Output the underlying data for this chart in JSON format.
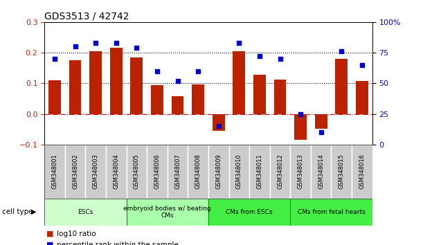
{
  "title": "GDS3513 / 42742",
  "samples": [
    "GSM348001",
    "GSM348002",
    "GSM348003",
    "GSM348004",
    "GSM348005",
    "GSM348006",
    "GSM348007",
    "GSM348008",
    "GSM348009",
    "GSM348010",
    "GSM348011",
    "GSM348012",
    "GSM348013",
    "GSM348014",
    "GSM348015",
    "GSM348016"
  ],
  "log10_ratio": [
    0.11,
    0.175,
    0.205,
    0.215,
    0.185,
    0.093,
    0.058,
    0.097,
    -0.055,
    0.205,
    0.127,
    0.113,
    -0.085,
    -0.048,
    0.18,
    0.108
  ],
  "percentile_rank": [
    70,
    80,
    83,
    83,
    79,
    60,
    52,
    60,
    15,
    83,
    72,
    70,
    25,
    10,
    76,
    65
  ],
  "bar_color": "#bb2200",
  "dot_color": "#0000cc",
  "ylim_left": [
    -0.1,
    0.3
  ],
  "ylim_right": [
    0,
    100
  ],
  "yticks_left": [
    -0.1,
    0.0,
    0.1,
    0.2,
    0.3
  ],
  "yticks_right": [
    0,
    25,
    50,
    75,
    100
  ],
  "ytick_labels_right": [
    "0",
    "25",
    "50",
    "75",
    "100%"
  ],
  "hline_values": [
    0.1,
    0.2
  ],
  "zero_line_color": "#cc0000",
  "dotted_line_color": "#000000",
  "tick_box_color": "#cccccc",
  "tick_box_edge": "#888888",
  "cell_type_groups": [
    {
      "label": "ESCs",
      "start": 0,
      "end": 3,
      "color": "#ccffcc"
    },
    {
      "label": "embryoid bodies w/ beating\nCMs",
      "start": 4,
      "end": 7,
      "color": "#aaffaa"
    },
    {
      "label": "CMs from ESCs",
      "start": 8,
      "end": 11,
      "color": "#44ee44"
    },
    {
      "label": "CMs from fetal hearts",
      "start": 12,
      "end": 15,
      "color": "#44ee44"
    }
  ],
  "cell_type_label": "cell type",
  "legend_bar_label": "log10 ratio",
  "legend_dot_label": "percentile rank within the sample",
  "plot_bg": "#ffffff"
}
